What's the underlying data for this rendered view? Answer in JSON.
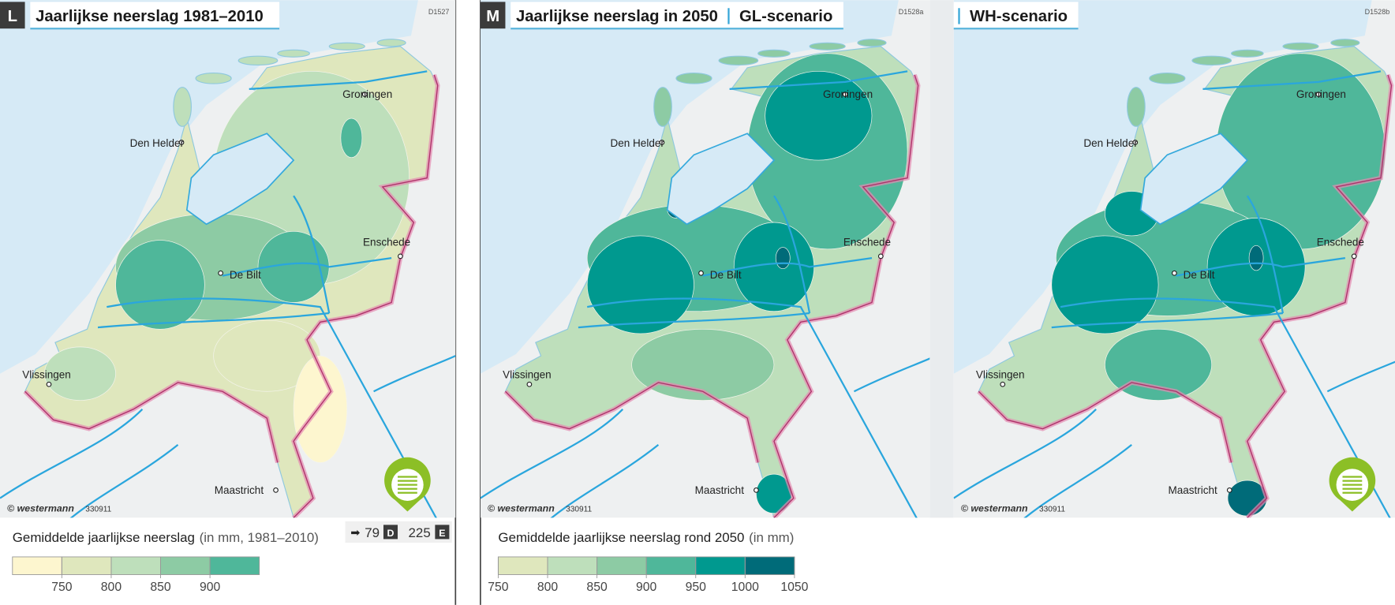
{
  "panels": [
    {
      "letter": "L",
      "title": "Jaarlijkse neerslag 1981–2010",
      "code": "D1527",
      "credit": "© westermann",
      "credit_number": "330911"
    },
    {
      "letter": "M",
      "title": "Jaarlijkse neerslag in 2050",
      "scenario": "GL-scenario",
      "code": "D1528a",
      "credit": "© westermann",
      "credit_number": "330911"
    },
    {
      "scenario": "WH-scenario",
      "code": "D1528b",
      "credit": "© westermann",
      "credit_number": "330911"
    }
  ],
  "cities": [
    "Groningen",
    "Den Helder",
    "Enschede",
    "De Bilt",
    "Vlissingen",
    "Maastricht"
  ],
  "legends": [
    {
      "title": "Gemiddelde jaarlijkse neerslag",
      "subtitle": "(in mm, 1981–2010)",
      "ticks": [
        750,
        800,
        850,
        900
      ],
      "colors": [
        "#fdf6cf",
        "#dfe7bd",
        "#bedfbb",
        "#8dcba4",
        "#4fb79a"
      ]
    },
    {
      "title": "Gemiddelde jaarlijkse neerslag rond 2050",
      "subtitle": "(in mm)",
      "ticks": [
        750,
        800,
        850,
        900,
        950,
        1000,
        1050
      ],
      "colors": [
        "#dfe7bd",
        "#bedfbb",
        "#8dcba4",
        "#4fb79a",
        "#00998f",
        "#006b79"
      ]
    }
  ],
  "page_refs": [
    {
      "arrow": "➡",
      "page": "79",
      "letter": "D"
    },
    {
      "page": "225",
      "letter": "E"
    }
  ]
}
